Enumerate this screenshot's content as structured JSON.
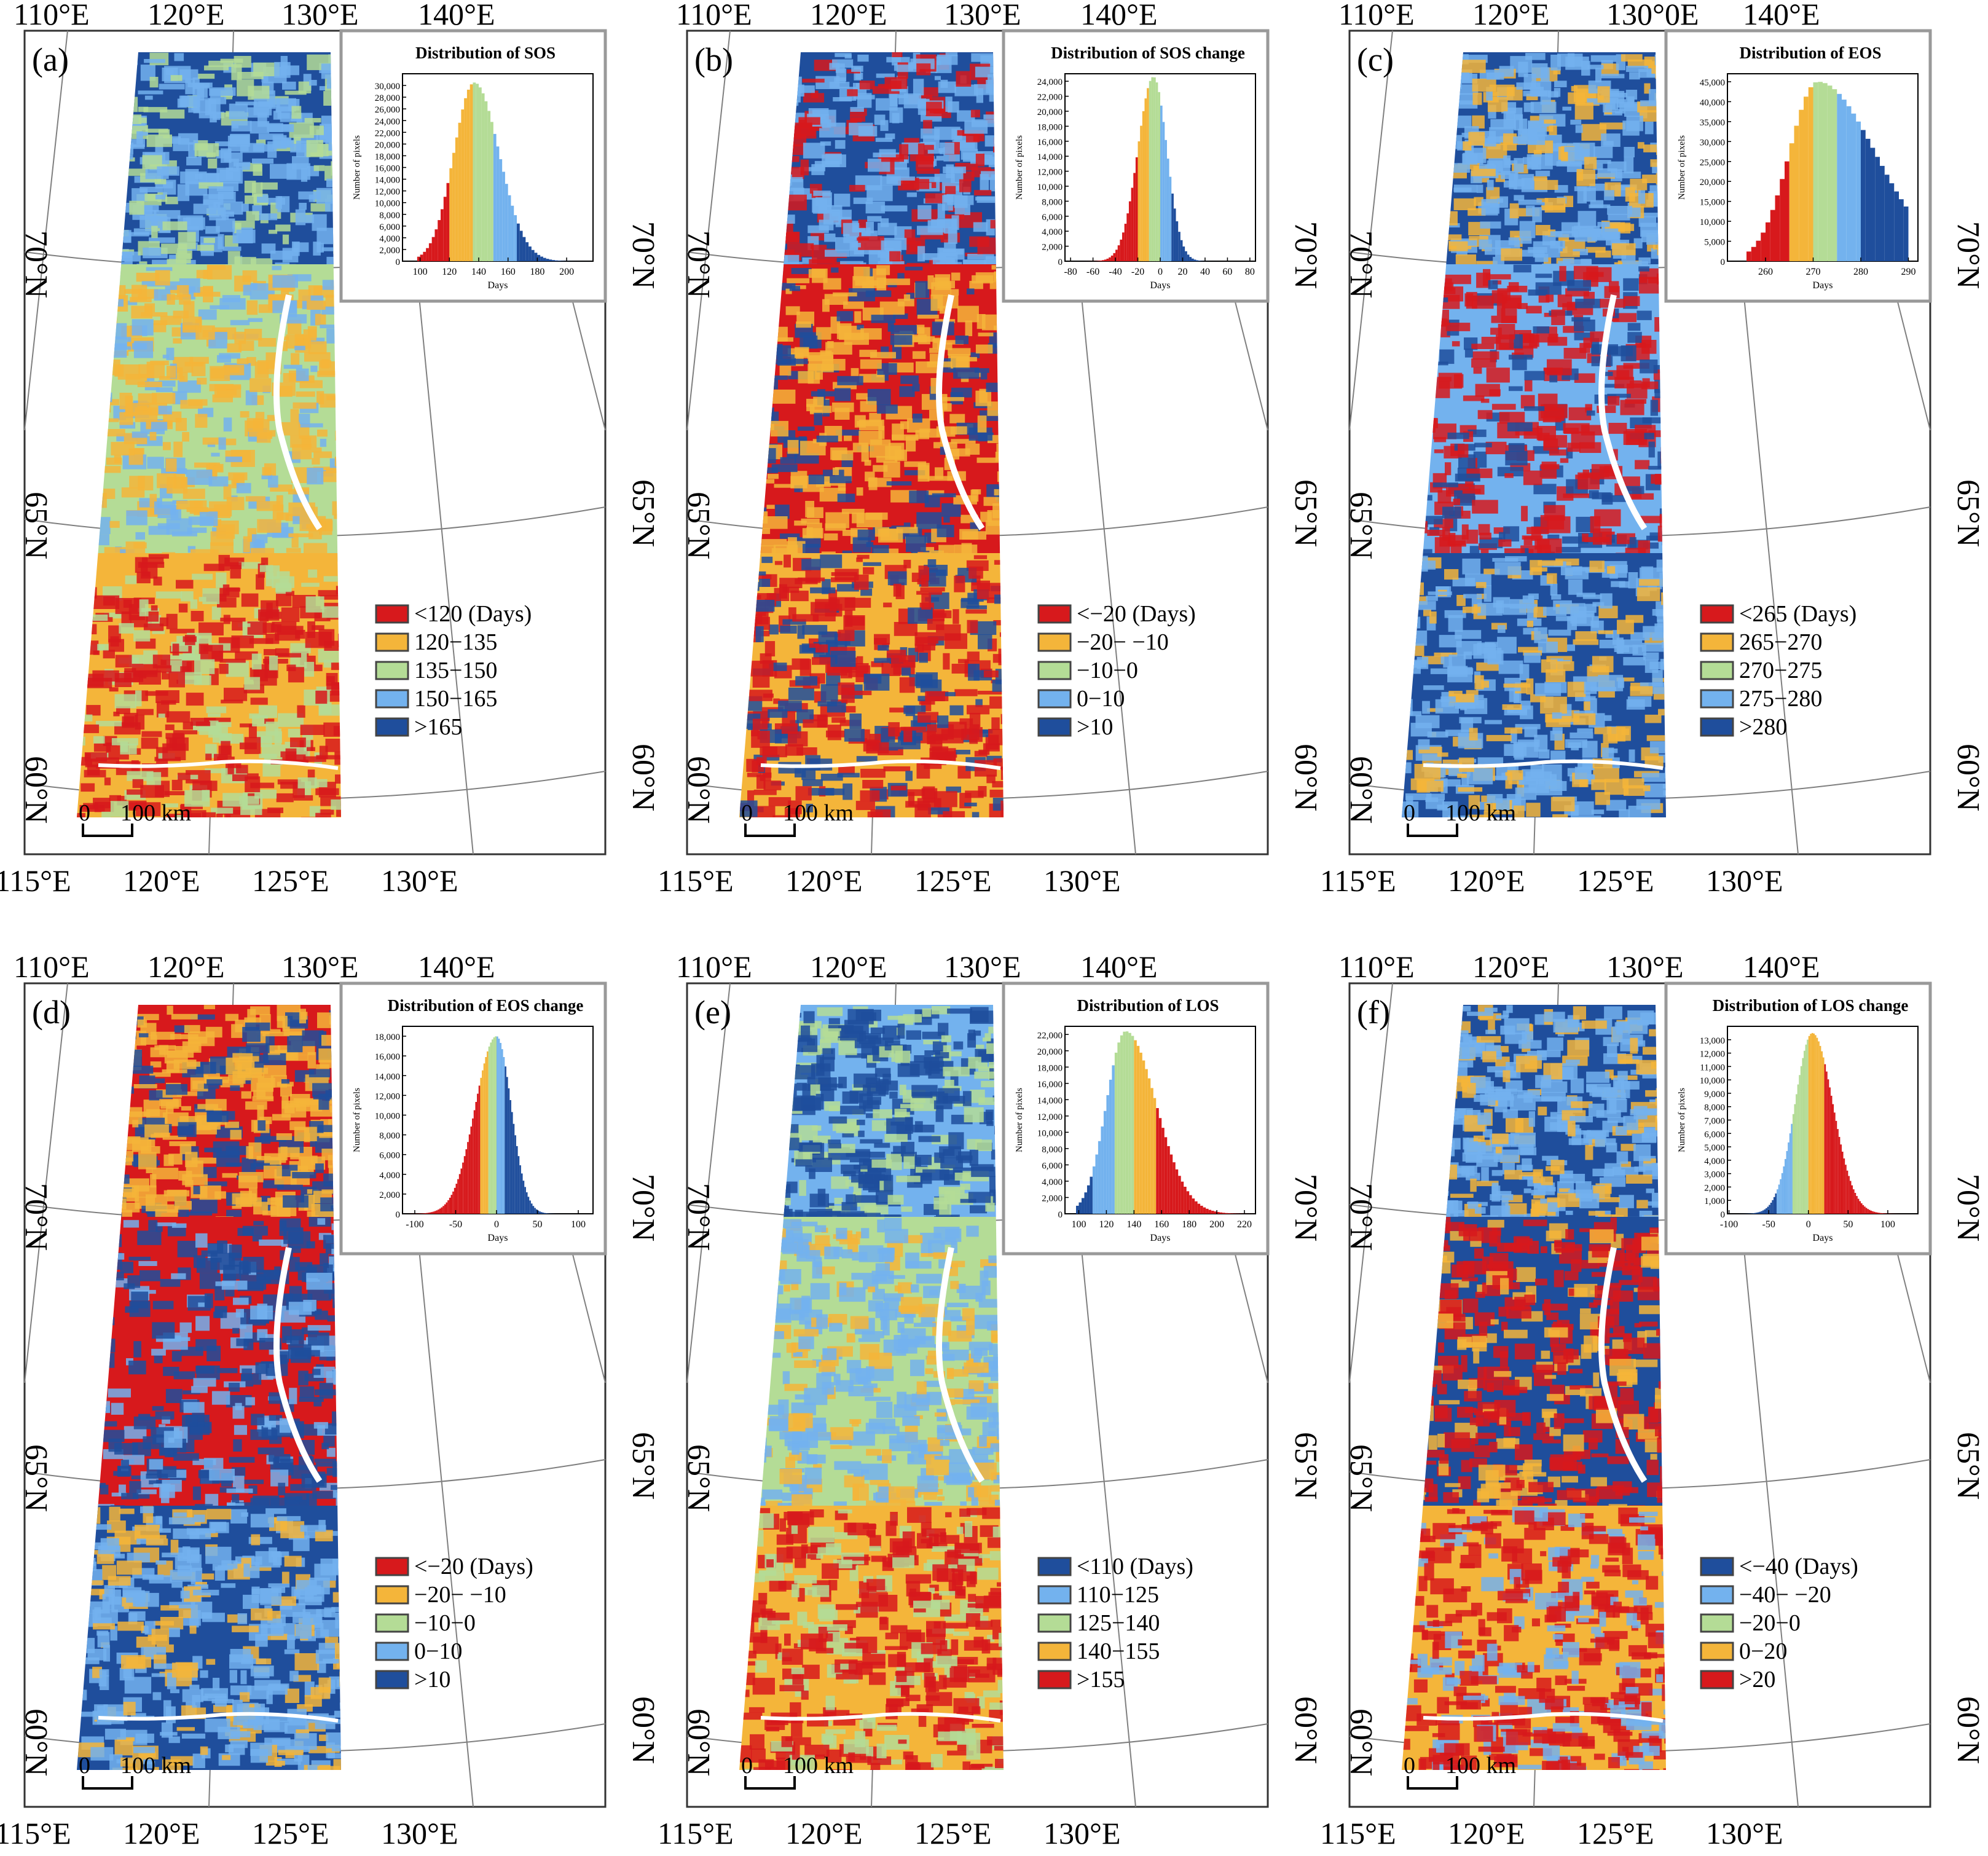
{
  "figure": {
    "colors": {
      "red": "#d7191c",
      "orange": "#f4b53a",
      "green": "#b4dc96",
      "lightblue": "#73b2ee",
      "darkblue": "#1f4e9c",
      "frame": "#999999",
      "grid": "#7f7f7f"
    },
    "panels": [
      {
        "id": "a",
        "label": "(a)",
        "top_lon_labels": [
          "110°E",
          "120°E",
          "130°E",
          "140°E"
        ],
        "bottom_lon_labels": [
          "115°E",
          "120°E",
          "125°E",
          "130°E"
        ],
        "lat_labels": [
          "70°N",
          "65°N",
          "60°N"
        ],
        "scale_bar": {
          "zero": "0",
          "label": "100 km"
        },
        "map_pattern": {
          "north": [
            "darkblue",
            "lightblue",
            "green"
          ],
          "middle": [
            "green",
            "orange",
            "lightblue"
          ],
          "south": [
            "orange",
            "red",
            "green"
          ]
        },
        "legend": [
          {
            "label": "<120 (Days)",
            "color": "red"
          },
          {
            "label": "120−135",
            "color": "orange"
          },
          {
            "label": "135−150",
            "color": "green"
          },
          {
            "label": "150−165",
            "color": "lightblue"
          },
          {
            "label": ">165",
            "color": "darkblue"
          }
        ],
        "chart_data": {
          "type": "bar",
          "title": "Distribution of SOS",
          "xlabel": "Days",
          "ylabel": "Number of pixels",
          "xlim": [
            88,
            218
          ],
          "ylim": [
            0,
            32000
          ],
          "xticks": [
            100,
            120,
            140,
            160,
            180,
            200
          ],
          "yticks": [
            0,
            2000,
            4000,
            6000,
            8000,
            10000,
            12000,
            14000,
            16000,
            18000,
            20000,
            22000,
            24000,
            26000,
            28000,
            30000
          ],
          "bin_width": 2,
          "peak": 137,
          "peak_value": 30500,
          "sigma_left": 14,
          "sigma_right": 17,
          "x_start": 98,
          "x_end": 215,
          "class_breaks": [
            120,
            135,
            150,
            165
          ],
          "class_colors": [
            "red",
            "orange",
            "green",
            "lightblue",
            "darkblue"
          ]
        }
      },
      {
        "id": "b",
        "label": "(b)",
        "top_lon_labels": [
          "110°E",
          "120°E",
          "130°E",
          "140°E"
        ],
        "bottom_lon_labels": [
          "115°E",
          "120°E",
          "125°E",
          "130°E"
        ],
        "lat_labels": [
          "70°N",
          "65°N",
          "60°N"
        ],
        "scale_bar": {
          "zero": "0",
          "label": "100 km"
        },
        "map_pattern": {
          "north": [
            "darkblue",
            "lightblue",
            "red"
          ],
          "middle": [
            "red",
            "orange",
            "darkblue"
          ],
          "south": [
            "orange",
            "red",
            "darkblue"
          ]
        },
        "legend": [
          {
            "label": "<−20 (Days)",
            "color": "red"
          },
          {
            "label": "−20− −10",
            "color": "orange"
          },
          {
            "label": "−10−0",
            "color": "green"
          },
          {
            "label": "0−10",
            "color": "lightblue"
          },
          {
            "label": ">10",
            "color": "darkblue"
          }
        ],
        "chart_data": {
          "type": "bar",
          "title": "Distribution of SOS change",
          "xlabel": "Days",
          "ylabel": "Number of pixels",
          "xlim": [
            -85,
            85
          ],
          "ylim": [
            0,
            25000
          ],
          "xticks": [
            -80,
            -60,
            -40,
            -20,
            0,
            20,
            40,
            60,
            80
          ],
          "yticks": [
            0,
            2000,
            4000,
            6000,
            8000,
            10000,
            12000,
            14000,
            16000,
            18000,
            20000,
            22000,
            24000
          ],
          "bin_width": 2,
          "peak": -6,
          "peak_value": 24600,
          "sigma_left": 14,
          "sigma_right": 12,
          "x_start": -80,
          "x_end": 80,
          "class_breaks": [
            -20,
            -10,
            0,
            10
          ],
          "class_colors": [
            "red",
            "orange",
            "green",
            "lightblue",
            "darkblue"
          ]
        }
      },
      {
        "id": "c",
        "label": "(c)",
        "top_lon_labels": [
          "110°E",
          "120°E",
          "130°0E",
          "140°E"
        ],
        "bottom_lon_labels": [
          "115°E",
          "120°E",
          "125°E",
          "130°E"
        ],
        "lat_labels": [
          "70°N",
          "65°N",
          "60°N"
        ],
        "scale_bar": {
          "zero": "0",
          "label": "100 km"
        },
        "map_pattern": {
          "north": [
            "darkblue",
            "lightblue",
            "orange"
          ],
          "middle": [
            "lightblue",
            "red",
            "darkblue"
          ],
          "south": [
            "darkblue",
            "lightblue",
            "orange"
          ]
        },
        "legend": [
          {
            "label": "<265 (Days)",
            "color": "red"
          },
          {
            "label": "265−270",
            "color": "orange"
          },
          {
            "label": "270−275",
            "color": "green"
          },
          {
            "label": "275−280",
            "color": "lightblue"
          },
          {
            "label": ">280",
            "color": "darkblue"
          }
        ],
        "chart_data": {
          "type": "bar",
          "title": "Distribution of EOS",
          "xlabel": "Days",
          "ylabel": "Number of pixels",
          "xlim": [
            252,
            292
          ],
          "ylim": [
            0,
            47000
          ],
          "xticks": [
            260,
            270,
            280,
            290
          ],
          "yticks": [
            0,
            5000,
            10000,
            15000,
            20000,
            25000,
            30000,
            35000,
            40000,
            45000
          ],
          "bin_width": 1,
          "peak": 271,
          "peak_value": 45000,
          "sigma_left": 6,
          "sigma_right": 12,
          "x_start": 256,
          "x_end": 290,
          "class_breaks": [
            265,
            270,
            275,
            280
          ],
          "class_colors": [
            "red",
            "orange",
            "green",
            "lightblue",
            "darkblue"
          ]
        }
      },
      {
        "id": "d",
        "label": "(d)",
        "top_lon_labels": [
          "110°E",
          "120°E",
          "130°E",
          "140°E"
        ],
        "bottom_lon_labels": [
          "115°E",
          "120°E",
          "125°E",
          "130°E"
        ],
        "lat_labels": [
          "70°N",
          "65°N",
          "60°N"
        ],
        "scale_bar": {
          "zero": "0",
          "label": "100 km"
        },
        "map_pattern": {
          "north": [
            "red",
            "orange",
            "darkblue"
          ],
          "middle": [
            "red",
            "darkblue",
            "lightblue"
          ],
          "south": [
            "darkblue",
            "lightblue",
            "orange"
          ]
        },
        "legend": [
          {
            "label": "<−20  (Days)",
            "color": "red"
          },
          {
            "label": "−20− −10",
            "color": "orange"
          },
          {
            "label": "−10−0",
            "color": "green"
          },
          {
            "label": "0−10",
            "color": "lightblue"
          },
          {
            "label": ">10",
            "color": "darkblue"
          }
        ],
        "chart_data": {
          "type": "bar",
          "title": "Distribution of EOS change",
          "xlabel": "Days",
          "ylabel": "Number of pixels",
          "xlim": [
            -115,
            118
          ],
          "ylim": [
            0,
            19000
          ],
          "xticks": [
            -100,
            -50,
            0,
            50,
            100
          ],
          "yticks": [
            0,
            2000,
            4000,
            6000,
            8000,
            10000,
            12000,
            14000,
            16000,
            18000
          ],
          "bin_width": 2,
          "peak": 0,
          "peak_value": 18000,
          "sigma_left": 26,
          "sigma_right": 18,
          "x_start": -110,
          "x_end": 115,
          "class_breaks": [
            -20,
            -10,
            0,
            10
          ],
          "class_colors": [
            "red",
            "orange",
            "green",
            "lightblue",
            "darkblue"
          ]
        }
      },
      {
        "id": "e",
        "label": "(e)",
        "top_lon_labels": [
          "110°E",
          "120°E",
          "130°E",
          "140°E"
        ],
        "bottom_lon_labels": [
          "115°E",
          "120°E",
          "125°E",
          "130°E"
        ],
        "lat_labels": [
          "70°N",
          "65°N",
          "60°N"
        ],
        "scale_bar": {
          "zero": "0",
          "label": "100 km"
        },
        "map_pattern": {
          "north": [
            "lightblue",
            "darkblue",
            "green"
          ],
          "middle": [
            "green",
            "lightblue",
            "orange"
          ],
          "south": [
            "orange",
            "red",
            "green"
          ]
        },
        "legend": [
          {
            "label": "<110  (Days)",
            "color": "darkblue"
          },
          {
            "label": "110−125",
            "color": "lightblue"
          },
          {
            "label": "125−140",
            "color": "green"
          },
          {
            "label": "140−155",
            "color": "orange"
          },
          {
            "label": ">155",
            "color": "red"
          }
        ],
        "chart_data": {
          "type": "bar",
          "title": "Distribution of LOS",
          "xlabel": "Days",
          "ylabel": "Number of pixels",
          "xlim": [
            90,
            228
          ],
          "ylim": [
            0,
            23000
          ],
          "xticks": [
            100,
            120,
            140,
            160,
            180,
            200,
            220
          ],
          "yticks": [
            0,
            2000,
            4000,
            6000,
            8000,
            10000,
            12000,
            14000,
            16000,
            18000,
            20000,
            22000
          ],
          "bin_width": 2,
          "peak": 134,
          "peak_value": 22400,
          "sigma_left": 14,
          "sigma_right": 22,
          "x_start": 98,
          "x_end": 225,
          "class_breaks": [
            110,
            125,
            140,
            155
          ],
          "class_colors": [
            "darkblue",
            "lightblue",
            "green",
            "orange",
            "red"
          ]
        }
      },
      {
        "id": "f",
        "label": "(f)",
        "top_lon_labels": [
          "110°E",
          "120°E",
          "130°E",
          "140°E"
        ],
        "bottom_lon_labels": [
          "115°E",
          "120°E",
          "125°E",
          "130°E"
        ],
        "lat_labels": [
          "70°N",
          "65°N",
          "60°N"
        ],
        "scale_bar": {
          "zero": "0",
          "label": "100 km"
        },
        "map_pattern": {
          "north": [
            "darkblue",
            "lightblue",
            "orange"
          ],
          "middle": [
            "darkblue",
            "red",
            "orange"
          ],
          "south": [
            "orange",
            "red",
            "lightblue"
          ]
        },
        "legend": [
          {
            "label": "<−40  (Days)",
            "color": "darkblue"
          },
          {
            "label": "−40− −20",
            "color": "lightblue"
          },
          {
            "label": "−20−0",
            "color": "green"
          },
          {
            "label": "0−20",
            "color": "orange"
          },
          {
            "label": ">20",
            "color": "red"
          }
        ],
        "chart_data": {
          "type": "bar",
          "title": "Distribution of LOS change",
          "xlabel": "Days",
          "ylabel": "Number of pixels",
          "xlim": [
            -102,
            138
          ],
          "ylim": [
            0,
            14000
          ],
          "xticks": [
            -100,
            -50,
            0,
            50,
            100
          ],
          "yticks": [
            0,
            1000,
            2000,
            3000,
            4000,
            5000,
            6000,
            7000,
            8000,
            9000,
            10000,
            11000,
            12000,
            13000
          ],
          "bin_width": 2,
          "peak": 5,
          "peak_value": 13500,
          "sigma_left": 22,
          "sigma_right": 26,
          "x_start": -100,
          "x_end": 135,
          "class_breaks": [
            -40,
            -20,
            0,
            20
          ],
          "class_colors": [
            "darkblue",
            "lightblue",
            "green",
            "orange",
            "red"
          ]
        }
      }
    ]
  }
}
